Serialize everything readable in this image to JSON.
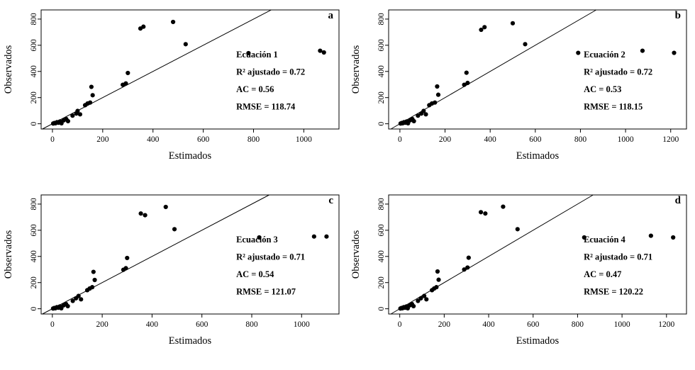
{
  "figure": {
    "background_color": "#ffffff",
    "point_color": "#000000",
    "line_color": "#000000"
  },
  "chart_data": [
    {
      "type": "scatter",
      "panel_label": "a",
      "xlabel": "Estimados",
      "ylabel": "Observados",
      "xlim": [
        -45,
        1140
      ],
      "ylim": [
        -40,
        870
      ],
      "xticks": [
        0,
        200,
        400,
        600,
        800,
        1000
      ],
      "yticks": [
        0,
        200,
        400,
        600,
        800
      ],
      "identity_line": true,
      "annotation_lines": [
        "Ecuación 1",
        "R² ajustado = 0.72",
        "AC = 0.56",
        "RMSE = 118.74"
      ],
      "points": [
        [
          3,
          2
        ],
        [
          8,
          6
        ],
        [
          12,
          4
        ],
        [
          18,
          12
        ],
        [
          24,
          8
        ],
        [
          30,
          18
        ],
        [
          36,
          4
        ],
        [
          45,
          26
        ],
        [
          55,
          36
        ],
        [
          62,
          20
        ],
        [
          80,
          62
        ],
        [
          95,
          78
        ],
        [
          100,
          98
        ],
        [
          110,
          72
        ],
        [
          130,
          142
        ],
        [
          140,
          155
        ],
        [
          150,
          162
        ],
        [
          160,
          218
        ],
        [
          155,
          282
        ],
        [
          280,
          298
        ],
        [
          292,
          308
        ],
        [
          300,
          388
        ],
        [
          350,
          728
        ],
        [
          362,
          742
        ],
        [
          480,
          778
        ],
        [
          530,
          608
        ],
        [
          780,
          540
        ],
        [
          1065,
          558
        ],
        [
          1080,
          545
        ]
      ]
    },
    {
      "type": "scatter",
      "panel_label": "b",
      "xlabel": "Estimados",
      "ylabel": "Observados",
      "xlim": [
        -50,
        1270
      ],
      "ylim": [
        -40,
        870
      ],
      "xticks": [
        0,
        200,
        400,
        600,
        800,
        1000,
        1200
      ],
      "yticks": [
        0,
        200,
        400,
        600,
        800
      ],
      "identity_line": true,
      "annotation_lines": [
        "Ecuación 2",
        "R² ajustado = 0.72",
        "AC = 0.53",
        "RMSE = 118.15"
      ],
      "points": [
        [
          3,
          2
        ],
        [
          8,
          6
        ],
        [
          12,
          4
        ],
        [
          18,
          12
        ],
        [
          24,
          8
        ],
        [
          30,
          18
        ],
        [
          36,
          4
        ],
        [
          45,
          26
        ],
        [
          55,
          36
        ],
        [
          62,
          20
        ],
        [
          80,
          62
        ],
        [
          95,
          78
        ],
        [
          105,
          98
        ],
        [
          115,
          72
        ],
        [
          130,
          142
        ],
        [
          142,
          155
        ],
        [
          155,
          162
        ],
        [
          170,
          222
        ],
        [
          165,
          285
        ],
        [
          285,
          298
        ],
        [
          300,
          312
        ],
        [
          295,
          390
        ],
        [
          360,
          718
        ],
        [
          375,
          738
        ],
        [
          500,
          768
        ],
        [
          555,
          608
        ],
        [
          790,
          542
        ],
        [
          1075,
          558
        ],
        [
          1215,
          542
        ]
      ]
    },
    {
      "type": "scatter",
      "panel_label": "c",
      "xlabel": "Estimados",
      "ylabel": "Observados",
      "xlim": [
        -45,
        1150
      ],
      "ylim": [
        -40,
        870
      ],
      "xticks": [
        0,
        200,
        400,
        600,
        800,
        1000
      ],
      "yticks": [
        0,
        200,
        400,
        600,
        800
      ],
      "identity_line": true,
      "annotation_lines": [
        "Ecuación 3",
        "R² ajustado = 0.71",
        "AC = 0.54",
        "RMSE = 121.07"
      ],
      "points": [
        [
          3,
          2
        ],
        [
          8,
          6
        ],
        [
          12,
          4
        ],
        [
          18,
          12
        ],
        [
          24,
          8
        ],
        [
          30,
          18
        ],
        [
          36,
          4
        ],
        [
          45,
          26
        ],
        [
          55,
          36
        ],
        [
          62,
          20
        ],
        [
          82,
          60
        ],
        [
          95,
          80
        ],
        [
          105,
          98
        ],
        [
          115,
          72
        ],
        [
          140,
          142
        ],
        [
          150,
          155
        ],
        [
          160,
          165
        ],
        [
          170,
          220
        ],
        [
          165,
          282
        ],
        [
          285,
          298
        ],
        [
          295,
          310
        ],
        [
          300,
          388
        ],
        [
          355,
          728
        ],
        [
          372,
          715
        ],
        [
          455,
          778
        ],
        [
          490,
          608
        ],
        [
          830,
          545
        ],
        [
          1050,
          552
        ],
        [
          1100,
          552
        ]
      ]
    },
    {
      "type": "scatter",
      "panel_label": "d",
      "xlabel": "Estimados",
      "ylabel": "Observados",
      "xlim": [
        -50,
        1290
      ],
      "ylim": [
        -40,
        870
      ],
      "xticks": [
        0,
        200,
        400,
        600,
        800,
        1000,
        1200
      ],
      "yticks": [
        0,
        200,
        400,
        600,
        800
      ],
      "identity_line": true,
      "annotation_lines": [
        "Ecuación 4",
        "R² ajustado = 0.71",
        "AC = 0.47",
        "RMSE = 120.22"
      ],
      "points": [
        [
          3,
          2
        ],
        [
          8,
          6
        ],
        [
          12,
          4
        ],
        [
          18,
          12
        ],
        [
          24,
          8
        ],
        [
          30,
          18
        ],
        [
          36,
          4
        ],
        [
          45,
          26
        ],
        [
          55,
          36
        ],
        [
          62,
          20
        ],
        [
          82,
          60
        ],
        [
          95,
          80
        ],
        [
          110,
          98
        ],
        [
          120,
          72
        ],
        [
          145,
          142
        ],
        [
          155,
          155
        ],
        [
          165,
          165
        ],
        [
          175,
          222
        ],
        [
          170,
          285
        ],
        [
          290,
          300
        ],
        [
          305,
          315
        ],
        [
          310,
          390
        ],
        [
          365,
          738
        ],
        [
          385,
          728
        ],
        [
          465,
          780
        ],
        [
          530,
          608
        ],
        [
          830,
          545
        ],
        [
          1130,
          558
        ],
        [
          1230,
          545
        ]
      ]
    }
  ]
}
